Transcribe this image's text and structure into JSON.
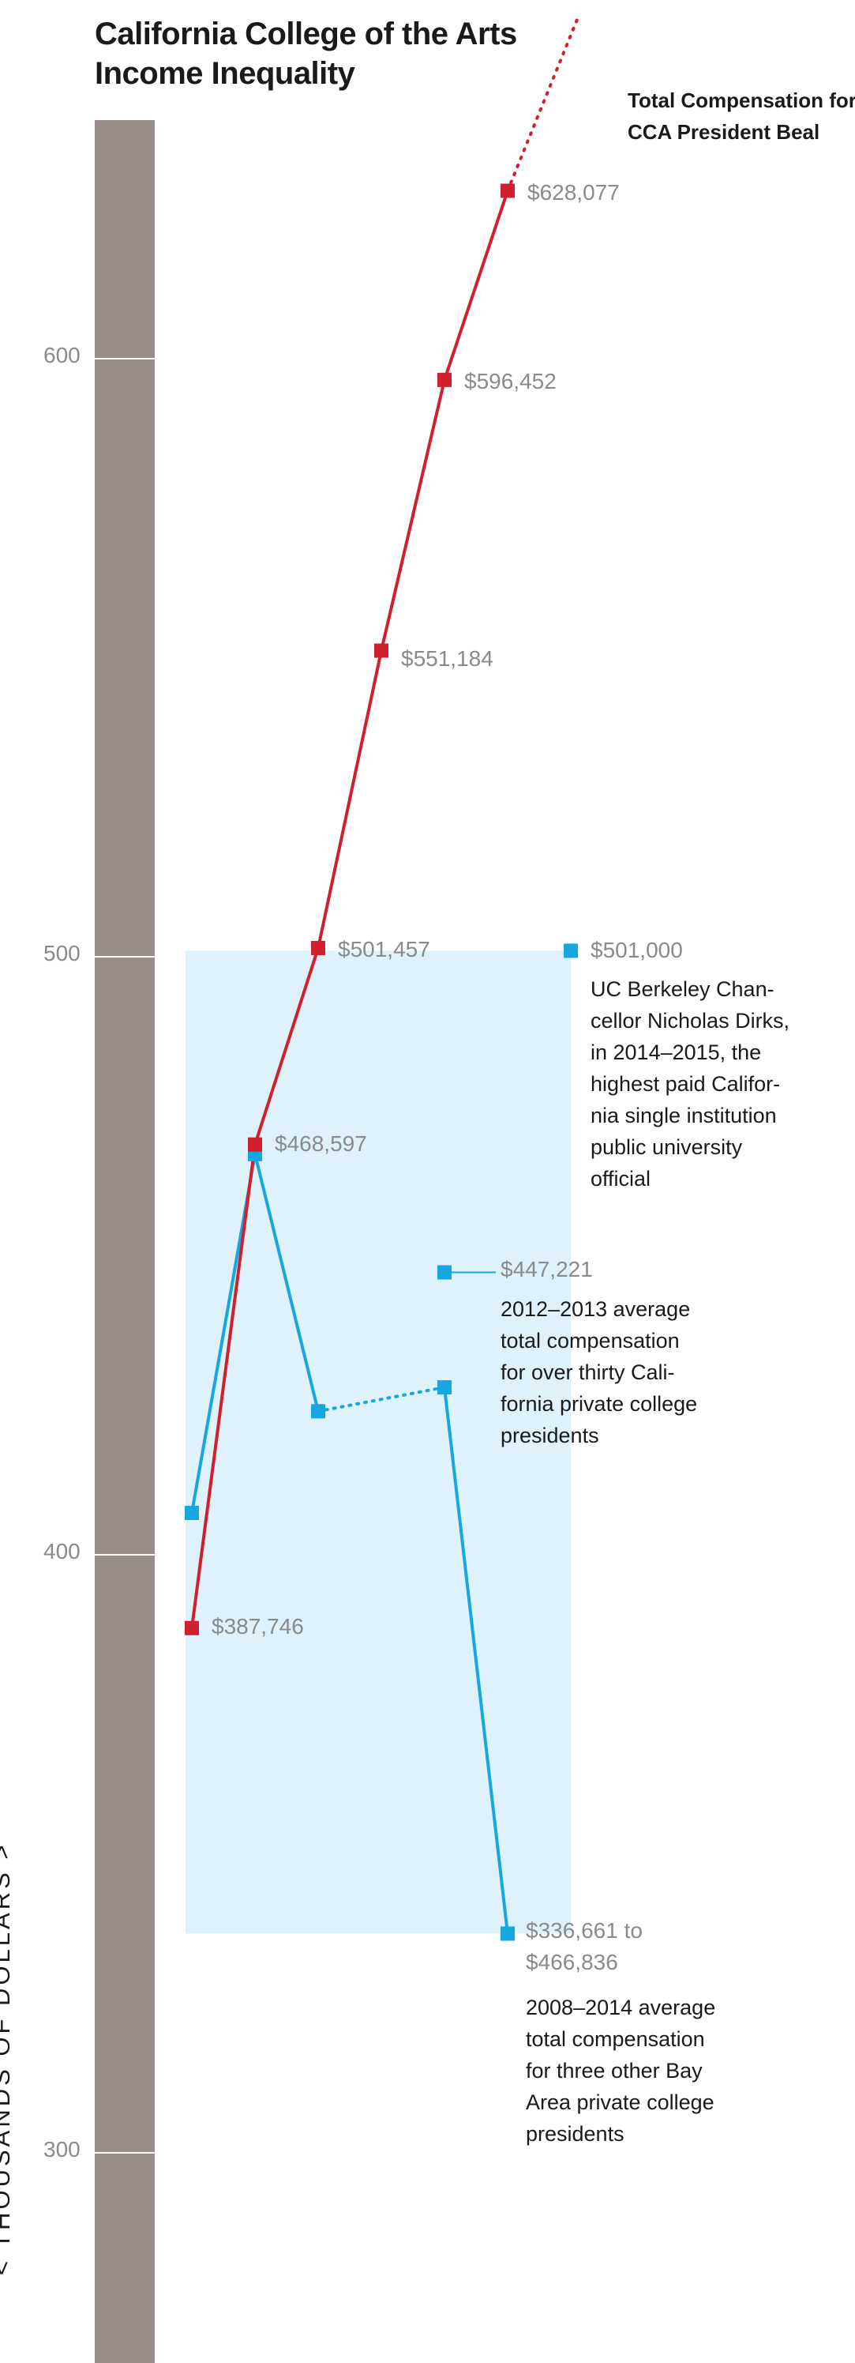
{
  "title_lines": [
    "California College of the Arts",
    "Income Inequality"
  ],
  "series_label_lines": [
    "Total Compensation for",
    "CCA President Beal"
  ],
  "y_axis_label": "< THOUSANDS OF DOLLARS >",
  "colors": {
    "red": "#d0202e",
    "blue": "#17a7e0",
    "band": "#dff1fa",
    "axis_bar": "#978c87",
    "muted": "#8a8a8a"
  },
  "chart_data": {
    "type": "line",
    "ylabel": "< THOUSANDS OF DOLLARS >",
    "ylim": [
      265,
      660
    ],
    "yticks": [
      300,
      400,
      500,
      600
    ],
    "x_positions": [
      1,
      2,
      3,
      4,
      5,
      6
    ],
    "series": [
      {
        "name": "Total Compensation for CCA President Beal",
        "color": "#d0202e",
        "x": [
          1,
          2,
          3,
          4,
          5,
          6
        ],
        "values": [
          387.746,
          468.597,
          501.457,
          551.184,
          596.452,
          628.077
        ],
        "labels": [
          "$387,746",
          "$468,597",
          "$501,457",
          "$551,184",
          "$596,452",
          "$628,077"
        ],
        "dotted_continuation": true
      },
      {
        "color": "#17a7e0",
        "x": [
          1,
          2,
          3,
          5,
          6
        ],
        "values": [
          407,
          467,
          424,
          428,
          336.661
        ],
        "dotted_segment": [
          3,
          5
        ],
        "labels": [
          "",
          "",
          "",
          "",
          "$336,661 to"
        ]
      }
    ],
    "reference_points": [
      {
        "x": 5,
        "value": 447.221,
        "label": "$447,221",
        "note": [
          "2012–2013 average",
          "total compensation",
          "for over thirty Cali-",
          "fornia private college",
          "presidents"
        ]
      },
      {
        "x": 7,
        "value": 501.0,
        "label": "$501,000",
        "note": [
          "UC Berkeley Chan-",
          "cellor Nicholas Dirks,",
          "in 2014–2015, the",
          "highest paid Califor-",
          "nia single institution",
          "public university",
          "official"
        ]
      }
    ],
    "range_band": {
      "low": 336.661,
      "high": 501,
      "x_from": 1,
      "x_to": 7
    },
    "range_label_high": "$466,836",
    "range_note": [
      "2008–2014 average",
      "total compensation",
      "for three other Bay",
      "Area private college",
      "presidents"
    ]
  }
}
